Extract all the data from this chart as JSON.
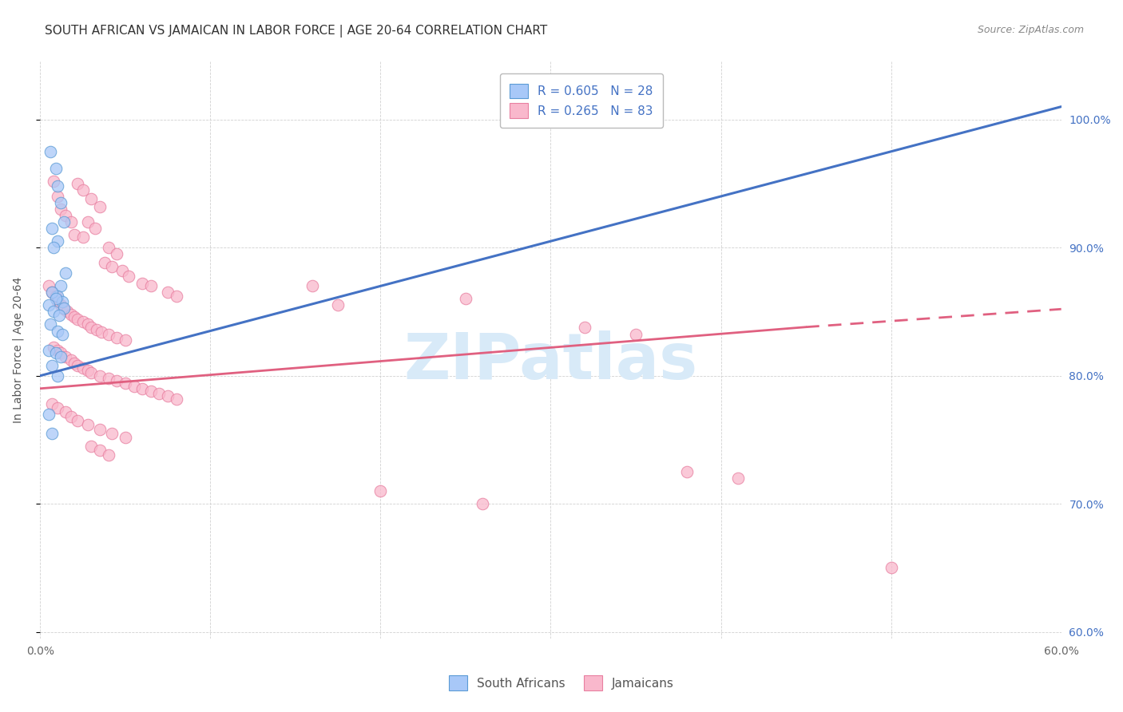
{
  "title": "SOUTH AFRICAN VS JAMAICAN IN LABOR FORCE | AGE 20-64 CORRELATION CHART",
  "source": "Source: ZipAtlas.com",
  "ylabel": "In Labor Force | Age 20-64",
  "xlim": [
    0.0,
    0.6
  ],
  "ylim": [
    0.595,
    1.045
  ],
  "xticks": [
    0.0,
    0.1,
    0.2,
    0.3,
    0.4,
    0.5,
    0.6
  ],
  "xticklabels": [
    "0.0%",
    "",
    "",
    "",
    "",
    "",
    "60.0%"
  ],
  "yticks": [
    0.6,
    0.7,
    0.8,
    0.9,
    1.0
  ],
  "yticklabels": [
    "60.0%",
    "70.0%",
    "80.0%",
    "90.0%",
    "100.0%"
  ],
  "blue_R": 0.605,
  "blue_N": 28,
  "pink_R": 0.265,
  "pink_N": 83,
  "blue_fill": "#A8C8F8",
  "pink_fill": "#F9B8CC",
  "blue_edge": "#5B9BD5",
  "pink_edge": "#E87FA0",
  "blue_line": "#4472C4",
  "pink_line": "#E06080",
  "blue_trendline": [
    [
      0.0,
      0.8
    ],
    [
      0.6,
      1.01
    ]
  ],
  "pink_trendline_solid": [
    [
      0.0,
      0.79
    ],
    [
      0.45,
      0.838
    ]
  ],
  "pink_trendline_dash": [
    [
      0.45,
      0.838
    ],
    [
      0.6,
      0.852
    ]
  ],
  "blue_scatter": [
    [
      0.006,
      0.975
    ],
    [
      0.009,
      0.962
    ],
    [
      0.01,
      0.948
    ],
    [
      0.012,
      0.935
    ],
    [
      0.014,
      0.92
    ],
    [
      0.01,
      0.905
    ],
    [
      0.007,
      0.915
    ],
    [
      0.008,
      0.9
    ],
    [
      0.015,
      0.88
    ],
    [
      0.012,
      0.87
    ],
    [
      0.01,
      0.862
    ],
    [
      0.013,
      0.858
    ],
    [
      0.014,
      0.853
    ],
    [
      0.007,
      0.865
    ],
    [
      0.009,
      0.86
    ],
    [
      0.005,
      0.855
    ],
    [
      0.008,
      0.85
    ],
    [
      0.011,
      0.847
    ],
    [
      0.006,
      0.84
    ],
    [
      0.01,
      0.835
    ],
    [
      0.013,
      0.832
    ],
    [
      0.005,
      0.82
    ],
    [
      0.009,
      0.818
    ],
    [
      0.012,
      0.815
    ],
    [
      0.007,
      0.808
    ],
    [
      0.01,
      0.8
    ],
    [
      0.005,
      0.77
    ],
    [
      0.007,
      0.755
    ]
  ],
  "pink_scatter": [
    [
      0.008,
      0.952
    ],
    [
      0.01,
      0.94
    ],
    [
      0.012,
      0.93
    ],
    [
      0.015,
      0.925
    ],
    [
      0.018,
      0.92
    ],
    [
      0.022,
      0.95
    ],
    [
      0.025,
      0.945
    ],
    [
      0.03,
      0.938
    ],
    [
      0.035,
      0.932
    ],
    [
      0.028,
      0.92
    ],
    [
      0.032,
      0.915
    ],
    [
      0.02,
      0.91
    ],
    [
      0.025,
      0.908
    ],
    [
      0.04,
      0.9
    ],
    [
      0.045,
      0.895
    ],
    [
      0.038,
      0.888
    ],
    [
      0.042,
      0.885
    ],
    [
      0.048,
      0.882
    ],
    [
      0.052,
      0.878
    ],
    [
      0.06,
      0.872
    ],
    [
      0.065,
      0.87
    ],
    [
      0.075,
      0.865
    ],
    [
      0.08,
      0.862
    ],
    [
      0.005,
      0.87
    ],
    [
      0.007,
      0.865
    ],
    [
      0.009,
      0.862
    ],
    [
      0.01,
      0.858
    ],
    [
      0.012,
      0.855
    ],
    [
      0.014,
      0.852
    ],
    [
      0.016,
      0.85
    ],
    [
      0.018,
      0.848
    ],
    [
      0.02,
      0.846
    ],
    [
      0.022,
      0.844
    ],
    [
      0.025,
      0.842
    ],
    [
      0.028,
      0.84
    ],
    [
      0.03,
      0.838
    ],
    [
      0.033,
      0.836
    ],
    [
      0.036,
      0.834
    ],
    [
      0.04,
      0.832
    ],
    [
      0.045,
      0.83
    ],
    [
      0.05,
      0.828
    ],
    [
      0.008,
      0.822
    ],
    [
      0.01,
      0.82
    ],
    [
      0.012,
      0.818
    ],
    [
      0.015,
      0.815
    ],
    [
      0.018,
      0.812
    ],
    [
      0.02,
      0.81
    ],
    [
      0.022,
      0.808
    ],
    [
      0.025,
      0.806
    ],
    [
      0.028,
      0.804
    ],
    [
      0.03,
      0.802
    ],
    [
      0.035,
      0.8
    ],
    [
      0.04,
      0.798
    ],
    [
      0.045,
      0.796
    ],
    [
      0.05,
      0.794
    ],
    [
      0.055,
      0.792
    ],
    [
      0.06,
      0.79
    ],
    [
      0.065,
      0.788
    ],
    [
      0.07,
      0.786
    ],
    [
      0.075,
      0.784
    ],
    [
      0.08,
      0.782
    ],
    [
      0.007,
      0.778
    ],
    [
      0.01,
      0.775
    ],
    [
      0.015,
      0.772
    ],
    [
      0.018,
      0.768
    ],
    [
      0.022,
      0.765
    ],
    [
      0.028,
      0.762
    ],
    [
      0.035,
      0.758
    ],
    [
      0.042,
      0.755
    ],
    [
      0.05,
      0.752
    ],
    [
      0.03,
      0.745
    ],
    [
      0.035,
      0.742
    ],
    [
      0.04,
      0.738
    ],
    [
      0.16,
      0.87
    ],
    [
      0.175,
      0.855
    ],
    [
      0.25,
      0.86
    ],
    [
      0.32,
      0.838
    ],
    [
      0.35,
      0.832
    ],
    [
      0.2,
      0.71
    ],
    [
      0.26,
      0.7
    ],
    [
      0.38,
      0.725
    ],
    [
      0.41,
      0.72
    ],
    [
      0.5,
      0.65
    ]
  ],
  "background_color": "#FFFFFF",
  "grid_color": "#CCCCCC",
  "watermark_text": "ZIPatlas",
  "watermark_color": "#D8EAF8",
  "title_fontsize": 11,
  "axis_label_fontsize": 10,
  "tick_fontsize": 10,
  "legend_fontsize": 11,
  "right_tick_color": "#4472C4"
}
